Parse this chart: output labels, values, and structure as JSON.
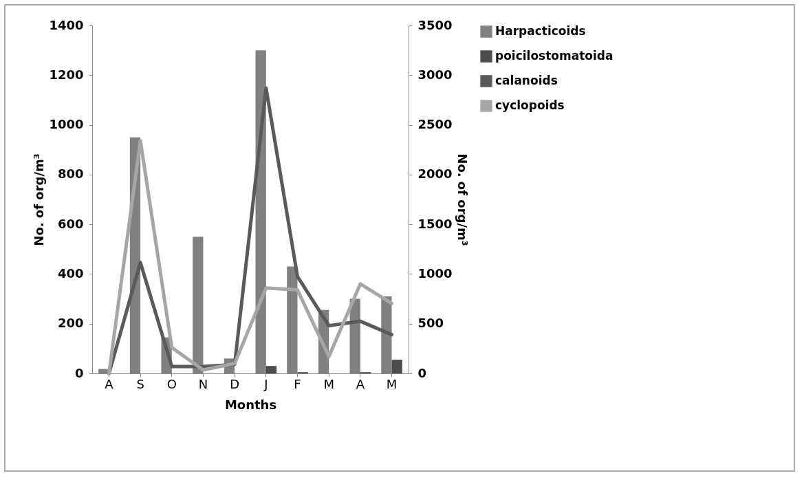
{
  "chart_data": {
    "type": "bar",
    "xlabel": "Months",
    "ylabel": "No. of org/m³",
    "y2label": "No. of org/m³",
    "categories": [
      "A",
      "S",
      "O",
      "N",
      "D",
      "J",
      "F",
      "M",
      "A",
      "M"
    ],
    "series": [
      {
        "name": "Harpacticoids",
        "color": "#808080",
        "values": [
          18,
          950,
          145,
          550,
          60,
          1300,
          430,
          255,
          300,
          310
        ]
      },
      {
        "name": "poicilostomatoida",
        "color": "#4d4d4d",
        "values": [
          0,
          0,
          0,
          0,
          0,
          30,
          5,
          0,
          5,
          55
        ]
      },
      {
        "name": "calanoids",
        "type": "line",
        "axis": "y2",
        "color": "#5a5a5a",
        "values": [
          0,
          1115,
          70,
          70,
          90,
          2870,
          975,
          480,
          525,
          390
        ]
      },
      {
        "name": "cyclopoids",
        "type": "line",
        "axis": "y2",
        "color": "#a6a6a6",
        "values": [
          0,
          2340,
          260,
          35,
          100,
          860,
          840,
          170,
          900,
          705
        ]
      }
    ],
    "ylim": [
      0,
      1400
    ],
    "yticks": [
      0,
      200,
      400,
      600,
      800,
      1000,
      1200,
      1400
    ],
    "y2lim": [
      0,
      3500
    ],
    "y2ticks": [
      0,
      500,
      1000,
      1500,
      2000,
      2500,
      3000,
      3500
    ],
    "grid": false,
    "legend": "right"
  }
}
